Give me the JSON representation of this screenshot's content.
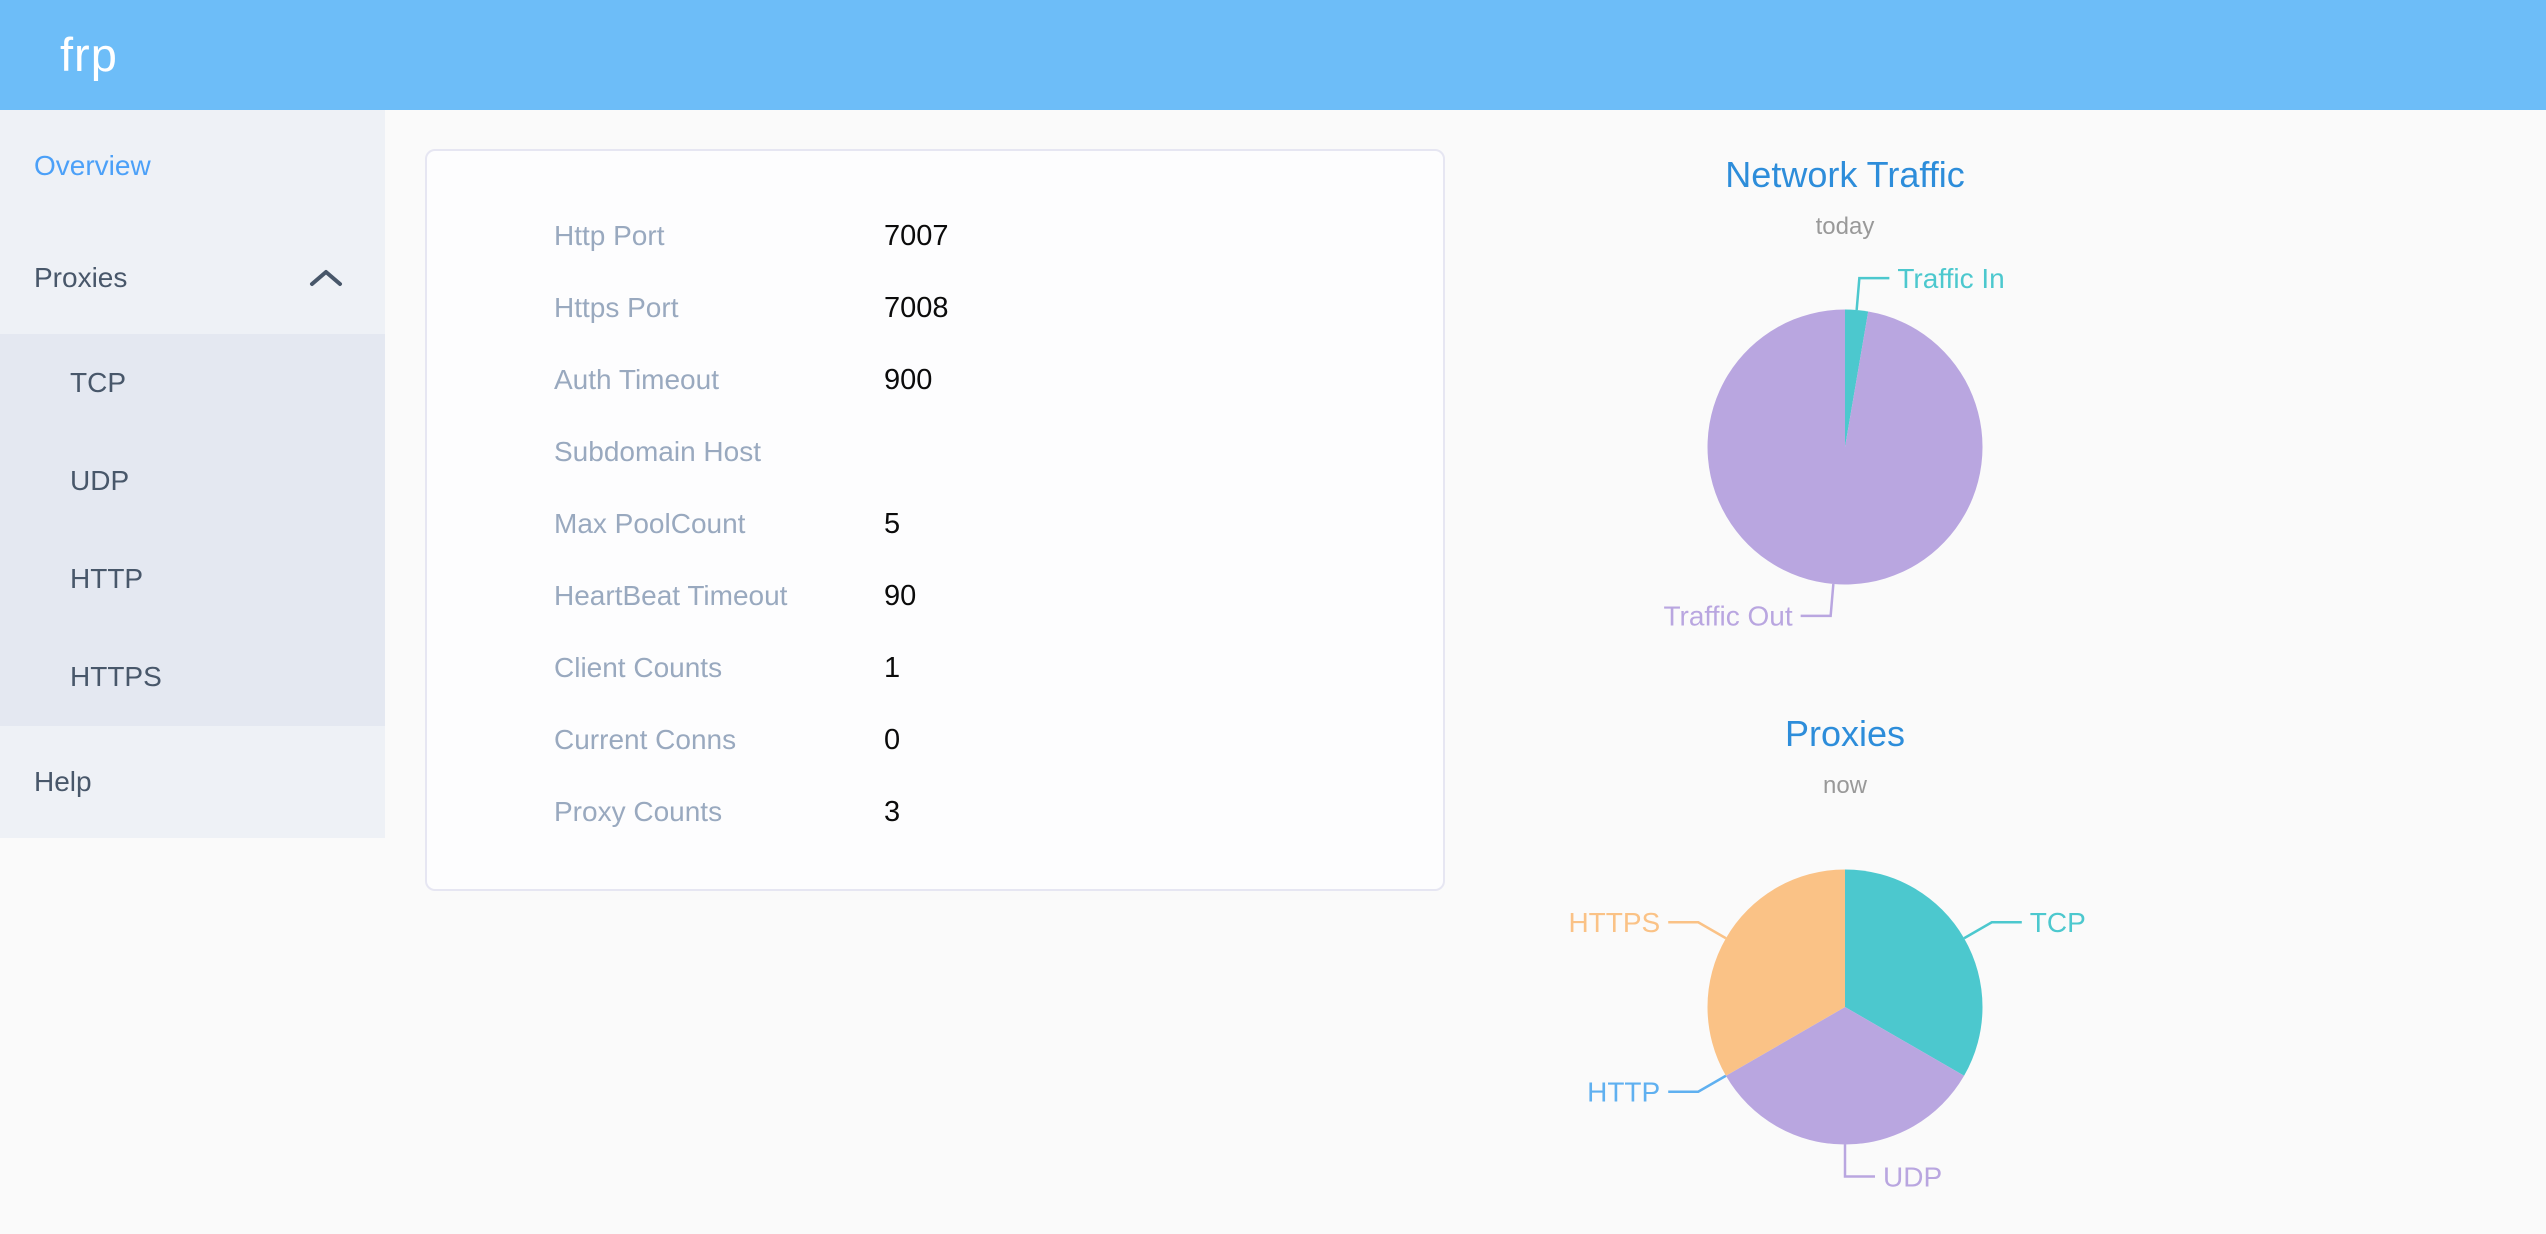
{
  "header": {
    "logo": "frp"
  },
  "sidebar": {
    "items": [
      {
        "label": "Overview",
        "active": true
      },
      {
        "label": "Proxies",
        "expanded": true,
        "children": [
          "TCP",
          "UDP",
          "HTTP",
          "HTTPS"
        ]
      },
      {
        "label": "Help"
      }
    ]
  },
  "server_info": {
    "rows": [
      {
        "label": "Http Port",
        "value": "7007"
      },
      {
        "label": "Https Port",
        "value": "7008"
      },
      {
        "label": "Auth Timeout",
        "value": "900"
      },
      {
        "label": "Subdomain Host",
        "value": ""
      },
      {
        "label": "Max PoolCount",
        "value": "5"
      },
      {
        "label": "HeartBeat Timeout",
        "value": "90"
      },
      {
        "label": "Client Counts",
        "value": "1"
      },
      {
        "label": "Current Conns",
        "value": "0"
      },
      {
        "label": "Proxy Counts",
        "value": "3"
      }
    ]
  },
  "chart_data": [
    {
      "id": "network-traffic",
      "type": "pie",
      "title": "Network Traffic",
      "subtitle": "today",
      "legend": "none",
      "label_position": "outside",
      "values_are": "percent_estimated_from_arc",
      "slices": [
        {
          "label": "Traffic In",
          "value": 2.7,
          "color": "#4cc8ce"
        },
        {
          "label": "Traffic Out",
          "value": 97.3,
          "color": "#b9a6e0"
        }
      ]
    },
    {
      "id": "proxies",
      "type": "pie",
      "title": "Proxies",
      "subtitle": "now",
      "legend": "none",
      "label_position": "outside",
      "values_are": "proxy_counts",
      "slices": [
        {
          "label": "TCP",
          "value": 1,
          "color": "#4cc8ce"
        },
        {
          "label": "UDP",
          "value": 1,
          "color": "#b9a6e0"
        },
        {
          "label": "HTTP",
          "value": 0,
          "color": "#5fb0f0"
        },
        {
          "label": "HTTPS",
          "value": 1,
          "color": "#fac286"
        }
      ]
    }
  ],
  "colors": {
    "header_bg": "#6dbdf8",
    "chart_title": "#2d8dda",
    "active_link": "#4ba0f8",
    "sidebar_text": "#48576a",
    "label_gray": "#99a9bf",
    "subtitle_gray": "#999999"
  }
}
